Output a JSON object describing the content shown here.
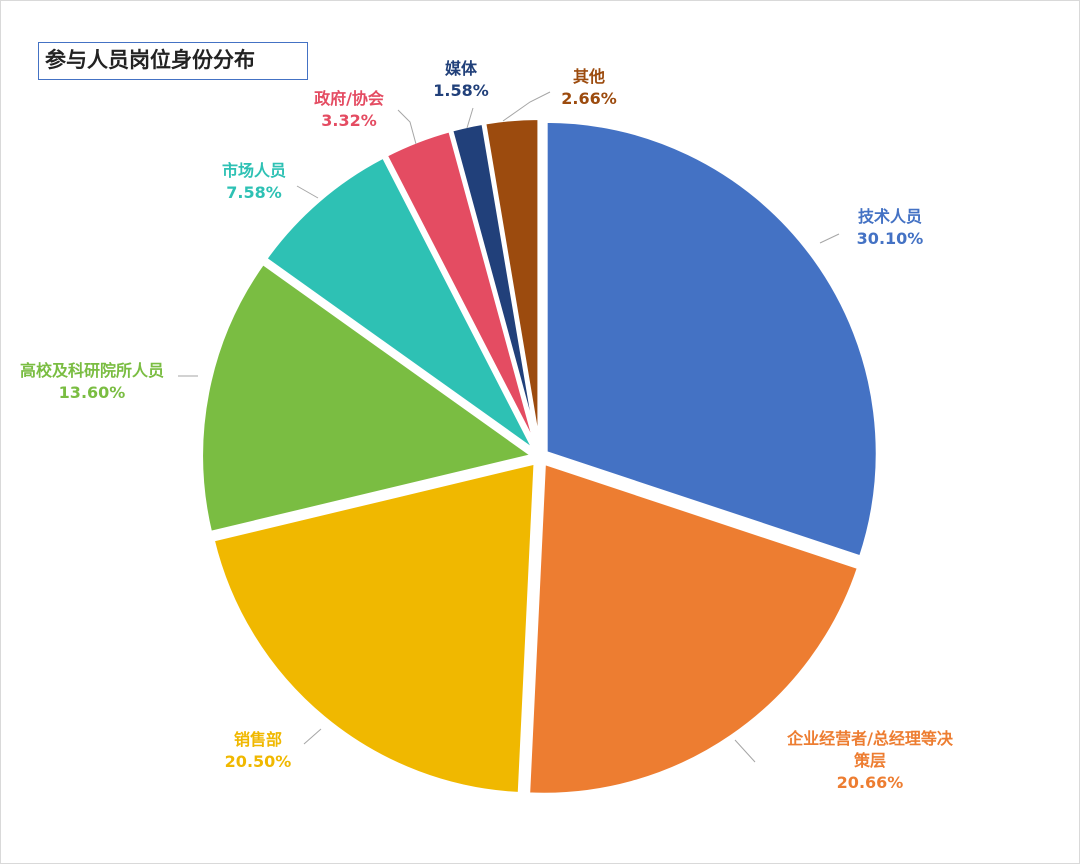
{
  "chart_data": {
    "type": "pie",
    "title": "参与人员岗位身份分布",
    "unit": "%",
    "slices": [
      {
        "label": "技术人员",
        "value": 30.1,
        "value_text": "30.10%",
        "color": "#4472c4"
      },
      {
        "label": "企业经营者/总经理等决策层",
        "value": 20.66,
        "value_text": "20.66%",
        "color": "#ed7d31"
      },
      {
        "label": "销售部",
        "value": 20.5,
        "value_text": "20.50%",
        "color": "#f0b800"
      },
      {
        "label": "高校及科研院所人员",
        "value": 13.6,
        "value_text": "13.60%",
        "color": "#7abd42"
      },
      {
        "label": "市场人员",
        "value": 7.58,
        "value_text": "7.58%",
        "color": "#2ec1b4"
      },
      {
        "label": "政府/协会",
        "value": 3.32,
        "value_text": "3.32%",
        "color": "#e44c62"
      },
      {
        "label": "媒体",
        "value": 1.58,
        "value_text": "1.58%",
        "color": "#21407a"
      },
      {
        "label": "其他",
        "value": 2.66,
        "value_text": "2.66%",
        "color": "#9c4b0e"
      }
    ],
    "legend": "none",
    "start_angle": "12 o'clock, clockwise",
    "exploded": true
  }
}
